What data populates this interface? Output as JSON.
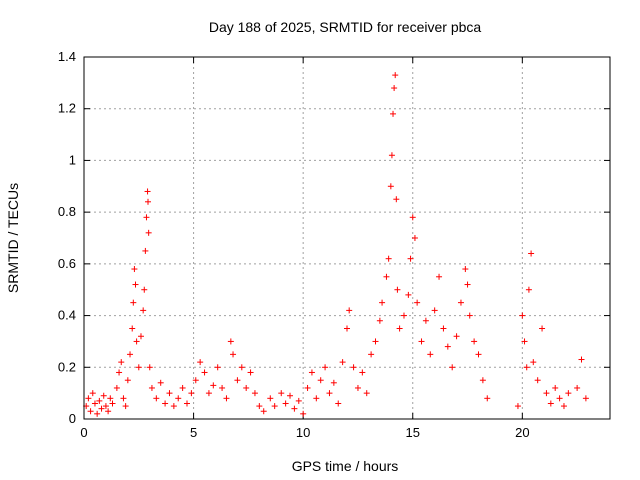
{
  "chart_data": {
    "type": "scatter",
    "title": "Day 188 of 2025, SRMTID for receiver pbca",
    "xlabel": "GPS time / hours",
    "ylabel": "SRMTID / TECUs",
    "xlim": [
      0,
      24
    ],
    "ylim": [
      0,
      1.4
    ],
    "xticks": [
      0,
      5,
      10,
      15,
      20
    ],
    "yticks": [
      0,
      0.2,
      0.4,
      0.6,
      0.8,
      1,
      1.2,
      1.4
    ],
    "ytick_labels": [
      "0",
      "0.2",
      "0.4",
      "0.6",
      "0.8",
      "1",
      "1.2",
      "1.4"
    ],
    "grid": true,
    "marker": "+",
    "color": "#ff0000",
    "series": [
      {
        "name": "SRMTID",
        "points": [
          [
            0.1,
            0.05
          ],
          [
            0.2,
            0.08
          ],
          [
            0.3,
            0.03
          ],
          [
            0.4,
            0.1
          ],
          [
            0.5,
            0.06
          ],
          [
            0.6,
            0.02
          ],
          [
            0.7,
            0.07
          ],
          [
            0.8,
            0.04
          ],
          [
            0.9,
            0.09
          ],
          [
            1.0,
            0.05
          ],
          [
            1.1,
            0.03
          ],
          [
            1.2,
            0.08
          ],
          [
            1.3,
            0.06
          ],
          [
            1.5,
            0.12
          ],
          [
            1.6,
            0.18
          ],
          [
            1.7,
            0.22
          ],
          [
            1.8,
            0.08
          ],
          [
            1.9,
            0.05
          ],
          [
            2.0,
            0.15
          ],
          [
            2.1,
            0.25
          ],
          [
            2.2,
            0.35
          ],
          [
            2.25,
            0.45
          ],
          [
            2.3,
            0.58
          ],
          [
            2.35,
            0.52
          ],
          [
            2.4,
            0.3
          ],
          [
            2.5,
            0.2
          ],
          [
            2.6,
            0.32
          ],
          [
            2.7,
            0.42
          ],
          [
            2.75,
            0.5
          ],
          [
            2.8,
            0.65
          ],
          [
            2.85,
            0.78
          ],
          [
            2.9,
            0.88
          ],
          [
            2.92,
            0.84
          ],
          [
            2.95,
            0.72
          ],
          [
            3.0,
            0.2
          ],
          [
            3.1,
            0.12
          ],
          [
            3.3,
            0.08
          ],
          [
            3.5,
            0.14
          ],
          [
            3.7,
            0.06
          ],
          [
            3.9,
            0.1
          ],
          [
            4.1,
            0.05
          ],
          [
            4.3,
            0.08
          ],
          [
            4.5,
            0.12
          ],
          [
            4.7,
            0.06
          ],
          [
            4.9,
            0.1
          ],
          [
            5.1,
            0.15
          ],
          [
            5.3,
            0.22
          ],
          [
            5.5,
            0.18
          ],
          [
            5.7,
            0.1
          ],
          [
            5.9,
            0.13
          ],
          [
            6.1,
            0.2
          ],
          [
            6.3,
            0.12
          ],
          [
            6.5,
            0.08
          ],
          [
            6.7,
            0.3
          ],
          [
            6.8,
            0.25
          ],
          [
            7.0,
            0.15
          ],
          [
            7.2,
            0.2
          ],
          [
            7.4,
            0.12
          ],
          [
            7.6,
            0.18
          ],
          [
            7.8,
            0.1
          ],
          [
            8.0,
            0.05
          ],
          [
            8.2,
            0.03
          ],
          [
            8.5,
            0.08
          ],
          [
            8.7,
            0.05
          ],
          [
            9.0,
            0.1
          ],
          [
            9.2,
            0.06
          ],
          [
            9.4,
            0.09
          ],
          [
            9.6,
            0.04
          ],
          [
            9.8,
            0.07
          ],
          [
            10.0,
            0.02
          ],
          [
            10.2,
            0.12
          ],
          [
            10.4,
            0.18
          ],
          [
            10.6,
            0.08
          ],
          [
            10.8,
            0.15
          ],
          [
            11.0,
            0.2
          ],
          [
            11.2,
            0.1
          ],
          [
            11.4,
            0.14
          ],
          [
            11.6,
            0.06
          ],
          [
            11.8,
            0.22
          ],
          [
            12.0,
            0.35
          ],
          [
            12.1,
            0.42
          ],
          [
            12.3,
            0.2
          ],
          [
            12.5,
            0.12
          ],
          [
            12.7,
            0.18
          ],
          [
            12.9,
            0.1
          ],
          [
            13.1,
            0.25
          ],
          [
            13.3,
            0.3
          ],
          [
            13.5,
            0.38
          ],
          [
            13.6,
            0.45
          ],
          [
            13.8,
            0.55
          ],
          [
            13.9,
            0.62
          ],
          [
            14.0,
            0.9
          ],
          [
            14.05,
            1.02
          ],
          [
            14.1,
            1.18
          ],
          [
            14.15,
            1.28
          ],
          [
            14.2,
            1.33
          ],
          [
            14.25,
            0.85
          ],
          [
            14.3,
            0.5
          ],
          [
            14.4,
            0.35
          ],
          [
            14.6,
            0.4
          ],
          [
            14.8,
            0.48
          ],
          [
            14.9,
            0.62
          ],
          [
            15.0,
            0.78
          ],
          [
            15.1,
            0.7
          ],
          [
            15.2,
            0.45
          ],
          [
            15.4,
            0.3
          ],
          [
            15.6,
            0.38
          ],
          [
            15.8,
            0.25
          ],
          [
            16.0,
            0.42
          ],
          [
            16.2,
            0.55
          ],
          [
            16.4,
            0.35
          ],
          [
            16.6,
            0.28
          ],
          [
            16.8,
            0.2
          ],
          [
            17.0,
            0.32
          ],
          [
            17.2,
            0.45
          ],
          [
            17.4,
            0.58
          ],
          [
            17.5,
            0.52
          ],
          [
            17.6,
            0.4
          ],
          [
            17.8,
            0.3
          ],
          [
            18.0,
            0.25
          ],
          [
            18.2,
            0.15
          ],
          [
            18.4,
            0.08
          ],
          [
            19.8,
            0.05
          ],
          [
            20.0,
            0.4
          ],
          [
            20.1,
            0.3
          ],
          [
            20.2,
            0.2
          ],
          [
            20.3,
            0.5
          ],
          [
            20.4,
            0.64
          ],
          [
            20.5,
            0.22
          ],
          [
            20.7,
            0.15
          ],
          [
            20.9,
            0.35
          ],
          [
            21.1,
            0.1
          ],
          [
            21.3,
            0.06
          ],
          [
            21.5,
            0.12
          ],
          [
            21.7,
            0.08
          ],
          [
            21.9,
            0.05
          ],
          [
            22.1,
            0.1
          ],
          [
            22.5,
            0.12
          ],
          [
            22.7,
            0.23
          ],
          [
            22.9,
            0.08
          ]
        ]
      }
    ]
  }
}
